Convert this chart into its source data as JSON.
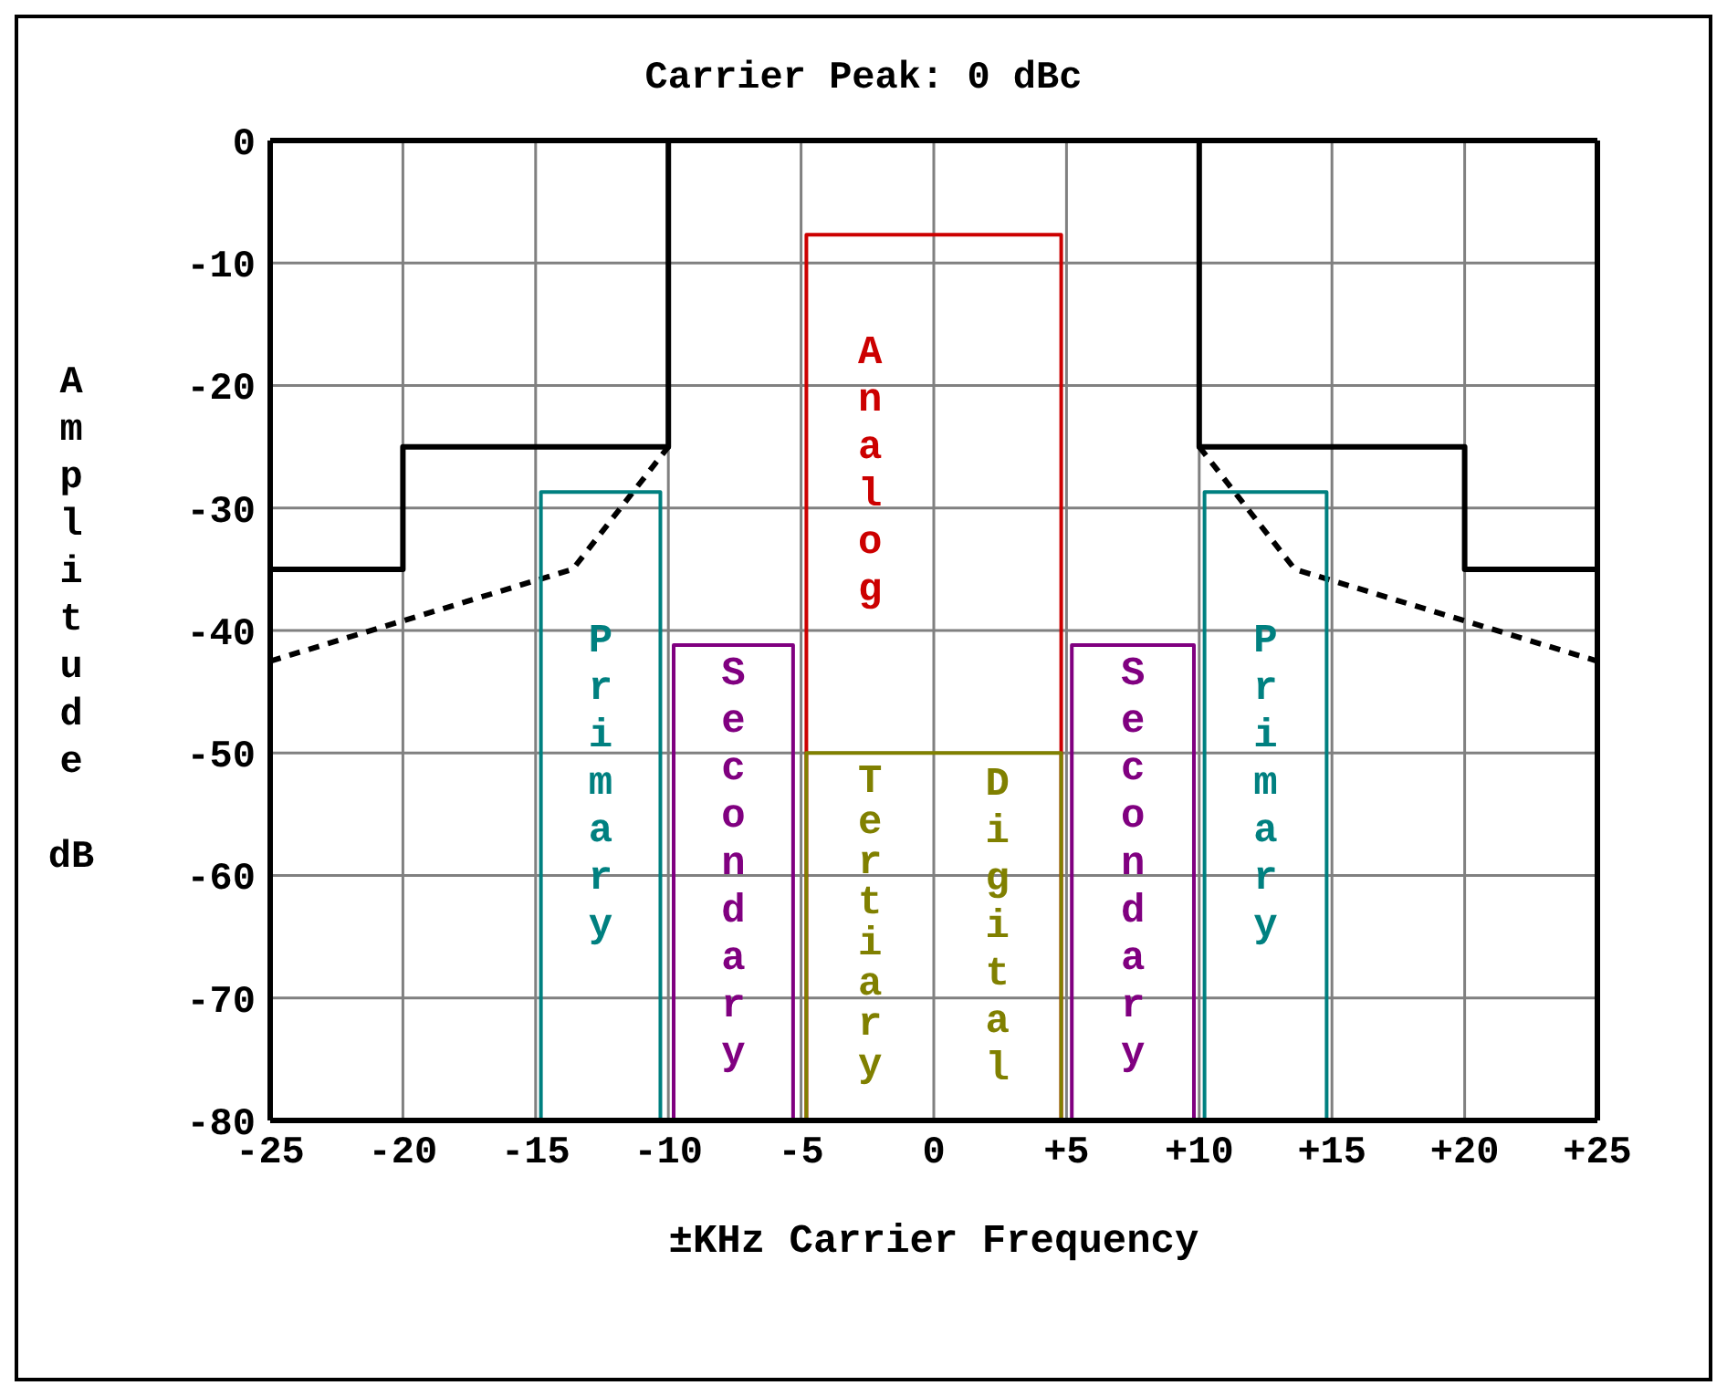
{
  "chart_data": {
    "type": "line",
    "title": "Carrier Peak: 0 dBc",
    "xlabel": "±KHz Carrier Frequency",
    "ylabel": "Amplitude dB",
    "xlim": [
      -25,
      25
    ],
    "xticks": [
      -25,
      -20,
      -15,
      -10,
      -5,
      0,
      {
        "value": 5,
        "label": "+5"
      },
      {
        "value": 10,
        "label": "+10"
      },
      {
        "value": 15,
        "label": "+15"
      },
      {
        "value": 20,
        "label": "+20"
      },
      {
        "value": 25,
        "label": "+25"
      }
    ],
    "ylim": [
      -80,
      0
    ],
    "yticks": [
      -80,
      -70,
      -60,
      -50,
      -40,
      -30,
      -20,
      -10,
      0
    ],
    "grid": true,
    "legend": false,
    "marker": "none",
    "series": [
      {
        "color": "#000000",
        "x": [
          -25,
          -20,
          -20,
          -10,
          -10
        ],
        "values": [
          -35,
          -35,
          -25,
          -25,
          0
        ]
      },
      {
        "color": "#000000",
        "x": [
          10,
          10,
          20,
          20,
          25
        ],
        "values": [
          0,
          -25,
          -25,
          -35,
          -35
        ]
      },
      {
        "color": "#000000",
        "line_style": "dashed",
        "x": [
          -25,
          -13.6,
          -10
        ],
        "values": [
          -42.5,
          -35,
          -25
        ]
      },
      {
        "color": "#000000",
        "line_style": "dashed",
        "x": [
          10,
          13.6,
          25
        ],
        "values": [
          -25,
          -35,
          -42.5
        ]
      },
      {
        "name": "Primary",
        "color": "#008080",
        "x": [
          -14.8,
          -14.8,
          -10.3,
          -10.3
        ],
        "values": [
          -80,
          -28.7,
          -28.7,
          -80
        ]
      },
      {
        "name": "Secondary",
        "color": "#800080",
        "x": [
          -9.8,
          -9.8,
          -5.3,
          -5.3
        ],
        "values": [
          -80,
          -41.2,
          -41.2,
          -80
        ]
      },
      {
        "name": "Analog",
        "color": "#cc0000",
        "x": [
          -4.8,
          -4.8,
          4.8,
          4.8
        ],
        "values": [
          -80,
          -7.7,
          -7.7,
          -80
        ]
      },
      {
        "name": "Tertiary",
        "color": "#808000",
        "x": [
          -4.8,
          -4.8,
          4.8,
          4.8
        ],
        "values": [
          -80,
          -50,
          -50,
          -80
        ]
      },
      {
        "name": "Secondary",
        "color": "#800080",
        "x": [
          5.2,
          5.2,
          9.8,
          9.8
        ],
        "values": [
          -80,
          -41.2,
          -41.2,
          -80
        ]
      },
      {
        "name": "Primary",
        "color": "#008080",
        "x": [
          10.2,
          10.2,
          14.8,
          14.8
        ],
        "values": [
          -80,
          -28.7,
          -28.7,
          -80
        ]
      }
    ],
    "annotations": [
      "Digital"
    ]
  }
}
